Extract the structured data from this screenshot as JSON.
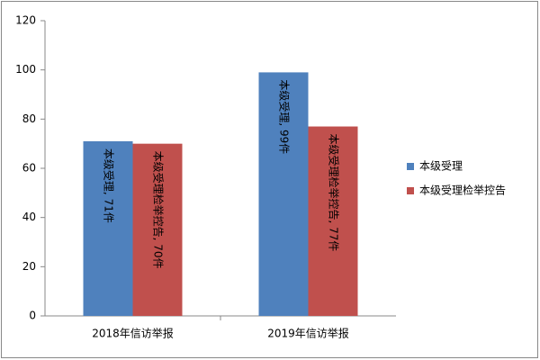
{
  "chart_data": {
    "type": "bar",
    "categories": [
      "2018年信访举报",
      "2019年信访举报"
    ],
    "series": [
      {
        "name": "本级受理",
        "color": "#4f81bd",
        "values": [
          71,
          99
        ],
        "value_labels": [
          "本级受理, 71件",
          "本级受理, 99件"
        ]
      },
      {
        "name": "本级受理检举控告",
        "color": "#c0504d",
        "values": [
          70,
          77
        ],
        "value_labels": [
          "本级受理检举控告, 70件",
          "本级受理检举控告, 77件"
        ]
      }
    ],
    "ylim": [
      0,
      120
    ],
    "yticks": [
      0,
      20,
      40,
      60,
      80,
      100,
      120
    ],
    "grid": false,
    "legend": "right"
  }
}
